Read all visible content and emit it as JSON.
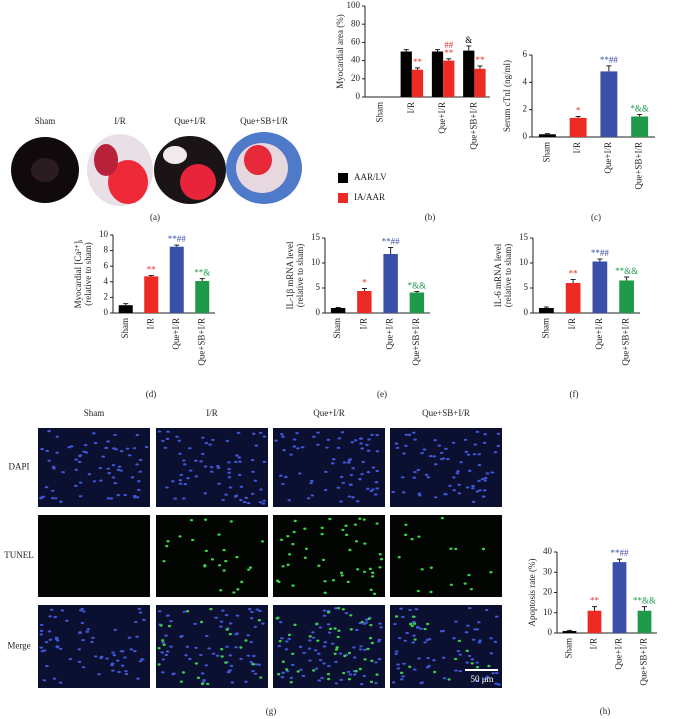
{
  "panel_a": {
    "label": "(a)",
    "columns": [
      "Sham",
      "I/R",
      "Que+I/R",
      "Que+SB+I/R"
    ]
  },
  "panel_g": {
    "label": "(g)",
    "columns": [
      "Sham",
      "I/R",
      "Que+I/R",
      "Que+SB+I/R"
    ],
    "rows": [
      "DAPI",
      "TUNEL",
      "Merge"
    ],
    "scale_bar": "50 μm"
  },
  "chart_data": [
    {
      "type": "bar",
      "panel": "(b)",
      "ylabel": [
        "Myocardial area (%)"
      ],
      "categories": [
        "Sham",
        "I/R",
        "Que+I/R",
        "Que+SB+I/R"
      ],
      "series": [
        {
          "name": "AAR/LV",
          "color": "#000000",
          "values": [
            null,
            50,
            50,
            51
          ],
          "errors": [
            null,
            2,
            2,
            5
          ],
          "significance": [
            null,
            null,
            null,
            [
              "&"
            ]
          ]
        },
        {
          "name": "IA/AAR",
          "color": "#ee2a24",
          "values": [
            null,
            30,
            40,
            31
          ],
          "errors": [
            null,
            2,
            2,
            3
          ],
          "significance": [
            null,
            [
              "**"
            ],
            [
              "##",
              "**"
            ],
            [
              "**"
            ]
          ]
        }
      ],
      "ylim": [
        0,
        100
      ],
      "yticks": [
        0,
        20,
        40,
        60,
        80,
        100
      ],
      "legend": "bottom-left"
    },
    {
      "type": "bar",
      "panel": "(c)",
      "ylabel": [
        "Serum cTnI (ng/ml)"
      ],
      "categories": [
        "Sham",
        "I/R",
        "Que+I/R",
        "Que+SB+I/R"
      ],
      "colors": [
        "#000000",
        "#ee2a24",
        "#3a4fa8",
        "#1f9a4a"
      ],
      "values": [
        0.2,
        1.4,
        4.8,
        1.5
      ],
      "errors": [
        0.05,
        0.1,
        0.4,
        0.15
      ],
      "significance": [
        null,
        [
          "*"
        ],
        [
          "**##"
        ],
        [
          "*&&"
        ]
      ],
      "ylim": [
        0,
        6
      ],
      "yticks": [
        0,
        2,
        4,
        6
      ]
    },
    {
      "type": "bar",
      "panel": "(d)",
      "ylabel": [
        "Myocardial [Ca²⁺]ᵢ",
        "(relative to sham)"
      ],
      "categories": [
        "Sham",
        "I/R",
        "Que+I/R",
        "Que+SB+I/R"
      ],
      "colors": [
        "#000000",
        "#ee2a24",
        "#3a4fa8",
        "#1f9a4a"
      ],
      "values": [
        1,
        4.7,
        8.5,
        4.1
      ],
      "errors": [
        0.2,
        0.1,
        0.2,
        0.3
      ],
      "significance": [
        null,
        [
          "**"
        ],
        [
          "**##"
        ],
        [
          "**&"
        ]
      ],
      "ylim": [
        0,
        10
      ],
      "yticks": [
        0,
        2,
        4,
        6,
        8,
        10
      ]
    },
    {
      "type": "bar",
      "panel": "(e)",
      "ylabel": [
        "IL-1β mRNA level",
        "(relative to sham)"
      ],
      "categories": [
        "Sham",
        "I/R",
        "Que+I/R",
        "Que+SB+I/R"
      ],
      "colors": [
        "#000000",
        "#ee2a24",
        "#3a4fa8",
        "#1f9a4a"
      ],
      "values": [
        1,
        4.4,
        11.8,
        4.1
      ],
      "errors": [
        0.1,
        0.5,
        1.3,
        0.2
      ],
      "significance": [
        null,
        [
          "*"
        ],
        [
          "**##"
        ],
        [
          "*&&"
        ]
      ],
      "ylim": [
        0,
        15
      ],
      "yticks": [
        0,
        5,
        10,
        15
      ]
    },
    {
      "type": "bar",
      "panel": "(f)",
      "ylabel": [
        "IL-6 mRNA level",
        "(relative to sham)"
      ],
      "categories": [
        "Sham",
        "I/R",
        "Que+I/R",
        "Que+SB+I/R"
      ],
      "colors": [
        "#000000",
        "#ee2a24",
        "#3a4fa8",
        "#1f9a4a"
      ],
      "values": [
        1,
        6,
        10.3,
        6.5
      ],
      "errors": [
        0.2,
        0.7,
        0.5,
        0.7
      ],
      "significance": [
        null,
        [
          "**"
        ],
        [
          "**##"
        ],
        [
          "**&&"
        ]
      ],
      "ylim": [
        0,
        15
      ],
      "yticks": [
        0,
        5,
        10,
        15
      ]
    },
    {
      "type": "bar",
      "panel": "(h)",
      "ylabel": [
        "Apoptosis rate (%)"
      ],
      "categories": [
        "Sham",
        "I/R",
        "Que+I/R",
        "Que+SB+I/R"
      ],
      "colors": [
        "#000000",
        "#ee2a24",
        "#3a4fa8",
        "#1f9a4a"
      ],
      "values": [
        1,
        11,
        35,
        11
      ],
      "errors": [
        0.3,
        2,
        1.5,
        2
      ],
      "significance": [
        null,
        [
          "**"
        ],
        [
          "**##"
        ],
        [
          "**&&"
        ]
      ],
      "ylim": [
        0,
        40
      ],
      "yticks": [
        0,
        10,
        20,
        30,
        40
      ]
    }
  ]
}
